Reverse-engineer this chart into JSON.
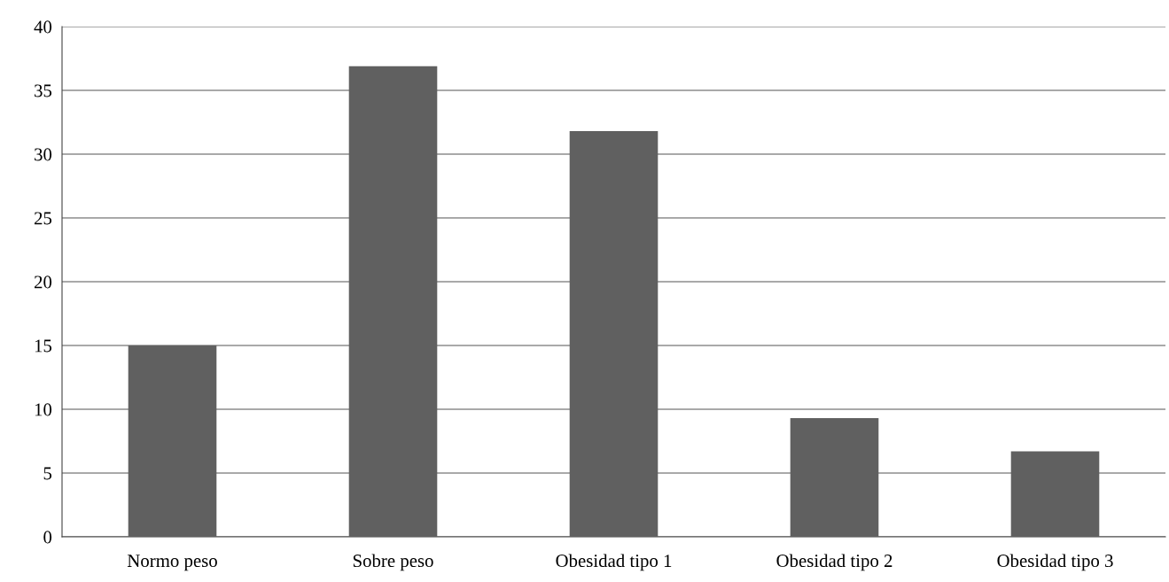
{
  "chart_data": {
    "type": "bar",
    "categories": [
      "Normo peso",
      "Sobre peso",
      "Obesidad tipo 1",
      "Obesidad tipo 2",
      "Obesidad tipo 3"
    ],
    "values": [
      15,
      36.9,
      31.8,
      9.3,
      6.7
    ],
    "color": "#606060",
    "ylim": [
      0,
      40
    ],
    "yticks": [
      0,
      5,
      10,
      15,
      20,
      25,
      30,
      35,
      40
    ],
    "grid": "y"
  }
}
